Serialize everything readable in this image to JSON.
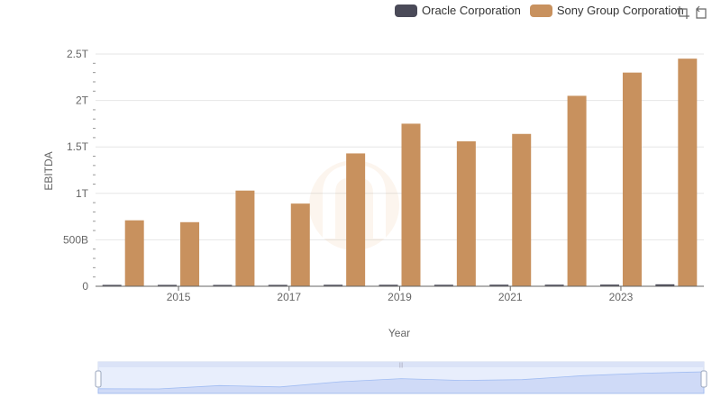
{
  "legend": [
    {
      "name": "Oracle Corporation",
      "color": "#4a4a58"
    },
    {
      "name": "Sony Group Corporation",
      "color": "#c8915e"
    }
  ],
  "toolbox": {
    "zoom_icon": "data-zoom-icon",
    "restore_icon": "restore-icon"
  },
  "chart_data": {
    "type": "bar",
    "xlabel": "Year",
    "ylabel": "EBITDA",
    "x_tick_labels": [
      "2015",
      "2017",
      "2019",
      "2021",
      "2023"
    ],
    "y_tick_labels": [
      "0",
      "500B",
      "1T",
      "1.5T",
      "2T",
      "2.5T"
    ],
    "ylim": [
      0,
      2500000000000
    ],
    "grid": true,
    "legend_position": "top-right",
    "categories": [
      "2014",
      "2015",
      "2016",
      "2017",
      "2018",
      "2019",
      "2020",
      "2021",
      "2022",
      "2023",
      "2024"
    ],
    "series": [
      {
        "name": "Oracle Corporation",
        "color": "#4a4a58",
        "values": [
          15000000000,
          15000000000,
          14000000000,
          15000000000,
          16000000000,
          16000000000,
          16000000000,
          17000000000,
          17000000000,
          18000000000,
          21000000000
        ]
      },
      {
        "name": "Sony Group Corporation",
        "color": "#c8915e",
        "values": [
          710000000000,
          690000000000,
          1030000000000,
          890000000000,
          1430000000000,
          1750000000000,
          1560000000000,
          1640000000000,
          2050000000000,
          2300000000000,
          2450000000000
        ]
      }
    ]
  }
}
